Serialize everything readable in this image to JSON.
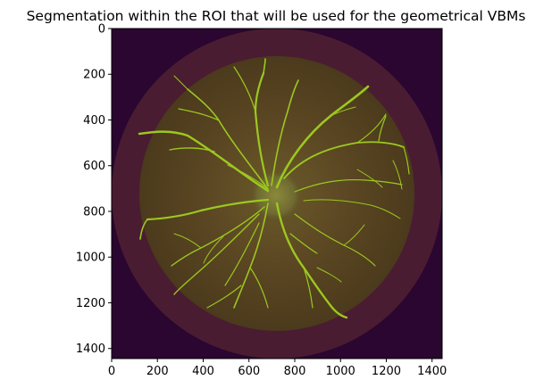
{
  "chart_data": {
    "type": "image",
    "title": "Segmentation within the ROI that will be used for the geometrical VBMs",
    "xlabel": "",
    "ylabel": "",
    "xlim": [
      0,
      1444
    ],
    "ylim": [
      1444,
      0
    ],
    "x_ticks": [
      0,
      200,
      400,
      600,
      800,
      1000,
      1200,
      1400
    ],
    "y_ticks": [
      0,
      200,
      400,
      600,
      800,
      1000,
      1200,
      1400
    ],
    "image_content": {
      "background_color": "#2a0630",
      "roi_ring_color": "#4a1c32",
      "fundus_color": "#5b4a24",
      "vessel_color": "#9cc81f",
      "optic_disc_center": [
        720,
        720
      ],
      "fundus_radius": 600,
      "roi_outer_radius": 722
    }
  }
}
